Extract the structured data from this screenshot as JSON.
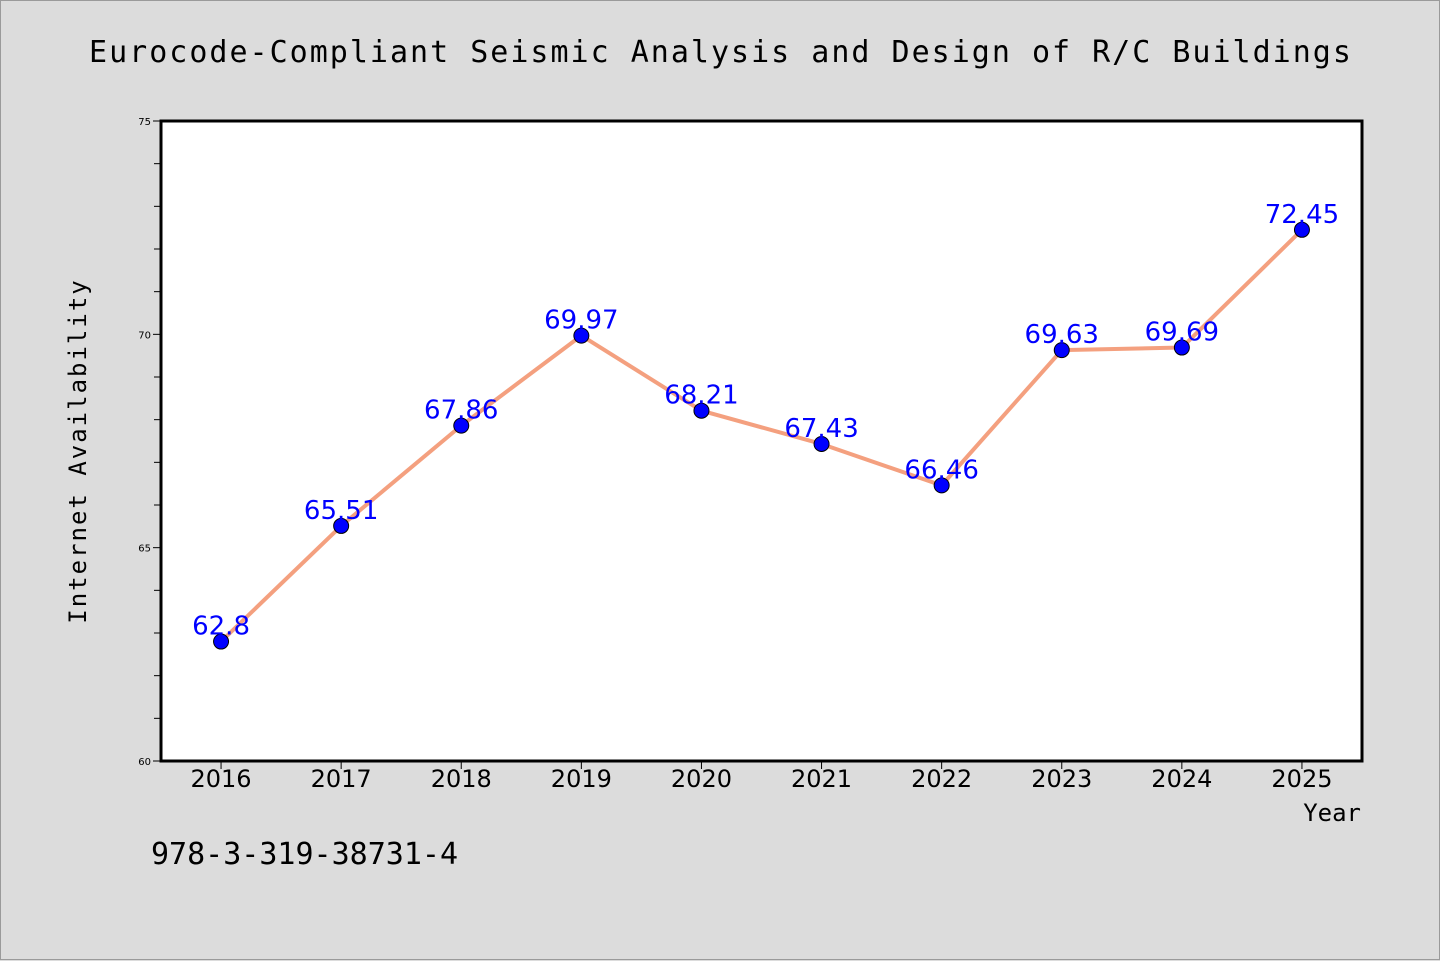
{
  "page": {
    "title": "Eurocode-Compliant Seismic Analysis and Design of R/C Buildings",
    "isbn": "978-3-319-38731-4",
    "background": "#dcdcdc"
  },
  "chart_data": {
    "type": "line",
    "xlabel": "Year",
    "ylabel": "Internet Availability",
    "categories": [
      "2016",
      "2017",
      "2018",
      "2019",
      "2020",
      "2021",
      "2022",
      "2023",
      "2024",
      "2025"
    ],
    "series": [
      {
        "values": [
          62.8,
          65.51,
          67.86,
          69.97,
          68.21,
          67.43,
          66.46,
          69.63,
          69.69,
          72.45
        ],
        "data_labels": [
          "62.8",
          "65.51",
          "67.86",
          "69.97",
          "68.21",
          "67.43",
          "66.46",
          "69.63",
          "69.69",
          "72.45"
        ],
        "line_color": "#f4a07f",
        "marker_color": "#0000ff"
      }
    ],
    "ylim": [
      60,
      75
    ],
    "yticks": [
      60,
      65,
      70,
      75
    ],
    "ytick_labels": [
      "60",
      "65",
      "70",
      "75"
    ],
    "grid": false,
    "legend": "none",
    "plot_background": "#ffffff",
    "label_color": "#0000ff"
  }
}
